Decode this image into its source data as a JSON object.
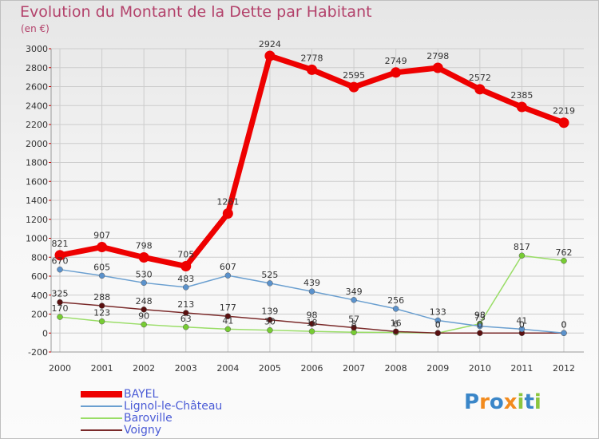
{
  "title": "Evolution du Montant de la Dette par Habitant",
  "subtitle": "(en €)",
  "brand": {
    "letters": [
      "P",
      "r",
      "o",
      "x",
      "i",
      "t",
      "i"
    ],
    "colors": [
      "#3a86c8",
      "#f28b1e",
      "#3a86c8",
      "#f28b1e",
      "#8cc63f",
      "#3a86c8",
      "#8cc63f"
    ]
  },
  "chart_data": {
    "type": "line",
    "x": [
      "2000",
      "2001",
      "2002",
      "2003",
      "2004",
      "2005",
      "2006",
      "2007",
      "2008",
      "2009",
      "2010",
      "2011",
      "2012"
    ],
    "ylim": [
      -200,
      3000
    ],
    "yticks": [
      -200,
      0,
      200,
      400,
      600,
      800,
      1000,
      1200,
      1400,
      1600,
      1800,
      2000,
      2200,
      2400,
      2600,
      2800,
      3000
    ],
    "grid": true,
    "legend_position": "bottom-left",
    "series": [
      {
        "name": "BAYEL",
        "color": "#ee0000",
        "values": [
          821,
          907,
          798,
          705,
          1261,
          2924,
          2778,
          2595,
          2749,
          2798,
          2572,
          2385,
          2219
        ],
        "labels": [
          "821",
          "907",
          "798",
          "705",
          "1261",
          "2924",
          "2778",
          "2595",
          "2749",
          "2798",
          "2572",
          "2385",
          "2219"
        ]
      },
      {
        "name": "Lignol-le-Château",
        "color": "#6a9fd0",
        "values": [
          670,
          605,
          530,
          483,
          607,
          525,
          439,
          349,
          256,
          133,
          73,
          41,
          0
        ],
        "labels": [
          "670",
          "605",
          "530",
          "483",
          "607",
          "525",
          "439",
          "349",
          "256",
          "133",
          "73",
          "41",
          "0"
        ]
      },
      {
        "name": "Baroville",
        "color": "#99dd66",
        "values": [
          170,
          123,
          90,
          63,
          41,
          30,
          18,
          8,
          6,
          0,
          98,
          817,
          762
        ],
        "labels": [
          "170",
          "123",
          "90",
          "63",
          "41",
          "30",
          "18",
          "8",
          "6",
          "0",
          "98",
          "817",
          "762"
        ]
      },
      {
        "name": "Voigny",
        "color": "#7a2a2a",
        "values": [
          325,
          288,
          248,
          213,
          177,
          139,
          98,
          57,
          16,
          0,
          0,
          0,
          0
        ],
        "labels": [
          "325",
          "288",
          "248",
          "213",
          "177",
          "139",
          "98",
          "57",
          "16",
          "0",
          "0",
          "0",
          "0"
        ]
      }
    ]
  }
}
